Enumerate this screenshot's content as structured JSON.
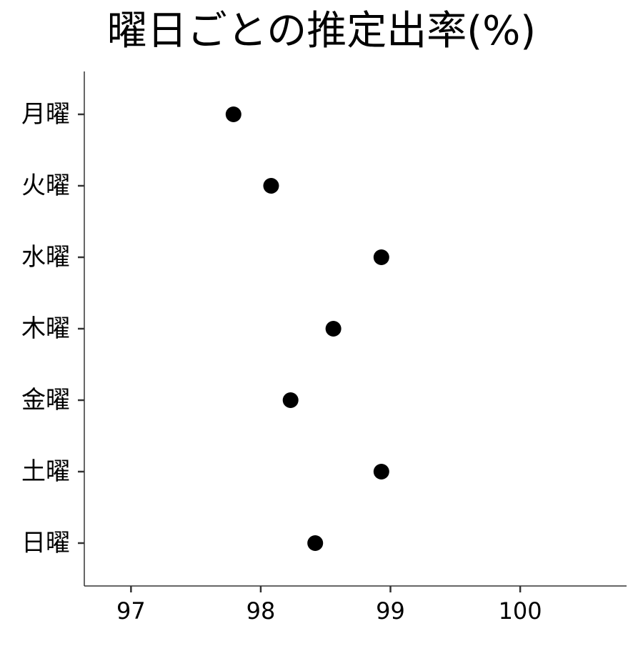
{
  "chart_data": {
    "type": "scatter",
    "title": "曜日ごとの推定出率(%)",
    "xlabel": "",
    "ylabel": "",
    "categories": [
      "月曜",
      "火曜",
      "水曜",
      "木曜",
      "金曜",
      "土曜",
      "日曜"
    ],
    "values": [
      97.79,
      98.08,
      98.93,
      98.56,
      98.23,
      98.93,
      98.42
    ],
    "xlim": [
      96.64,
      100.82
    ],
    "xticks": [
      97,
      98,
      99,
      100
    ],
    "xtick_labels": [
      "97",
      "98",
      "99",
      "100"
    ],
    "grid": false,
    "legend": "none"
  },
  "colors": {
    "point": "#000000",
    "axis": "#333333",
    "text": "#000000"
  }
}
